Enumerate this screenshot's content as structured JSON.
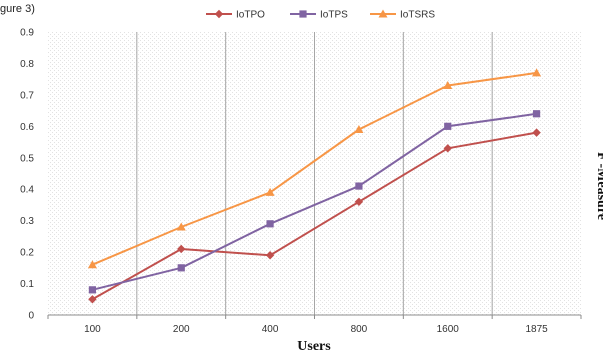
{
  "crop_text": "gure 3)",
  "chart_data": {
    "type": "line",
    "categories": [
      "100",
      "200",
      "400",
      "800",
      "1600",
      "1875"
    ],
    "series": [
      {
        "name": "IoTPO",
        "values": [
          0.05,
          0.21,
          0.19,
          0.36,
          0.53,
          0.58
        ],
        "color": "#C0504D",
        "marker": "diamond"
      },
      {
        "name": "IoTPS",
        "values": [
          0.08,
          0.15,
          0.29,
          0.41,
          0.6,
          0.64
        ],
        "color": "#8064A2",
        "marker": "square"
      },
      {
        "name": "IoTSRS",
        "values": [
          0.16,
          0.28,
          0.39,
          0.59,
          0.73,
          0.77
        ],
        "color": "#F79646",
        "marker": "triangle"
      }
    ],
    "y_ticks": [
      "0",
      "0.1",
      "0.2",
      "0.3",
      "0.4",
      "0.5",
      "0.6",
      "0.7",
      "0.8",
      "0.9"
    ],
    "ylim": [
      0,
      0.9
    ],
    "xlabel": "Users",
    "ylabel": "F -Measure",
    "legend_position": "top",
    "grid": "vertical-category-lines"
  }
}
